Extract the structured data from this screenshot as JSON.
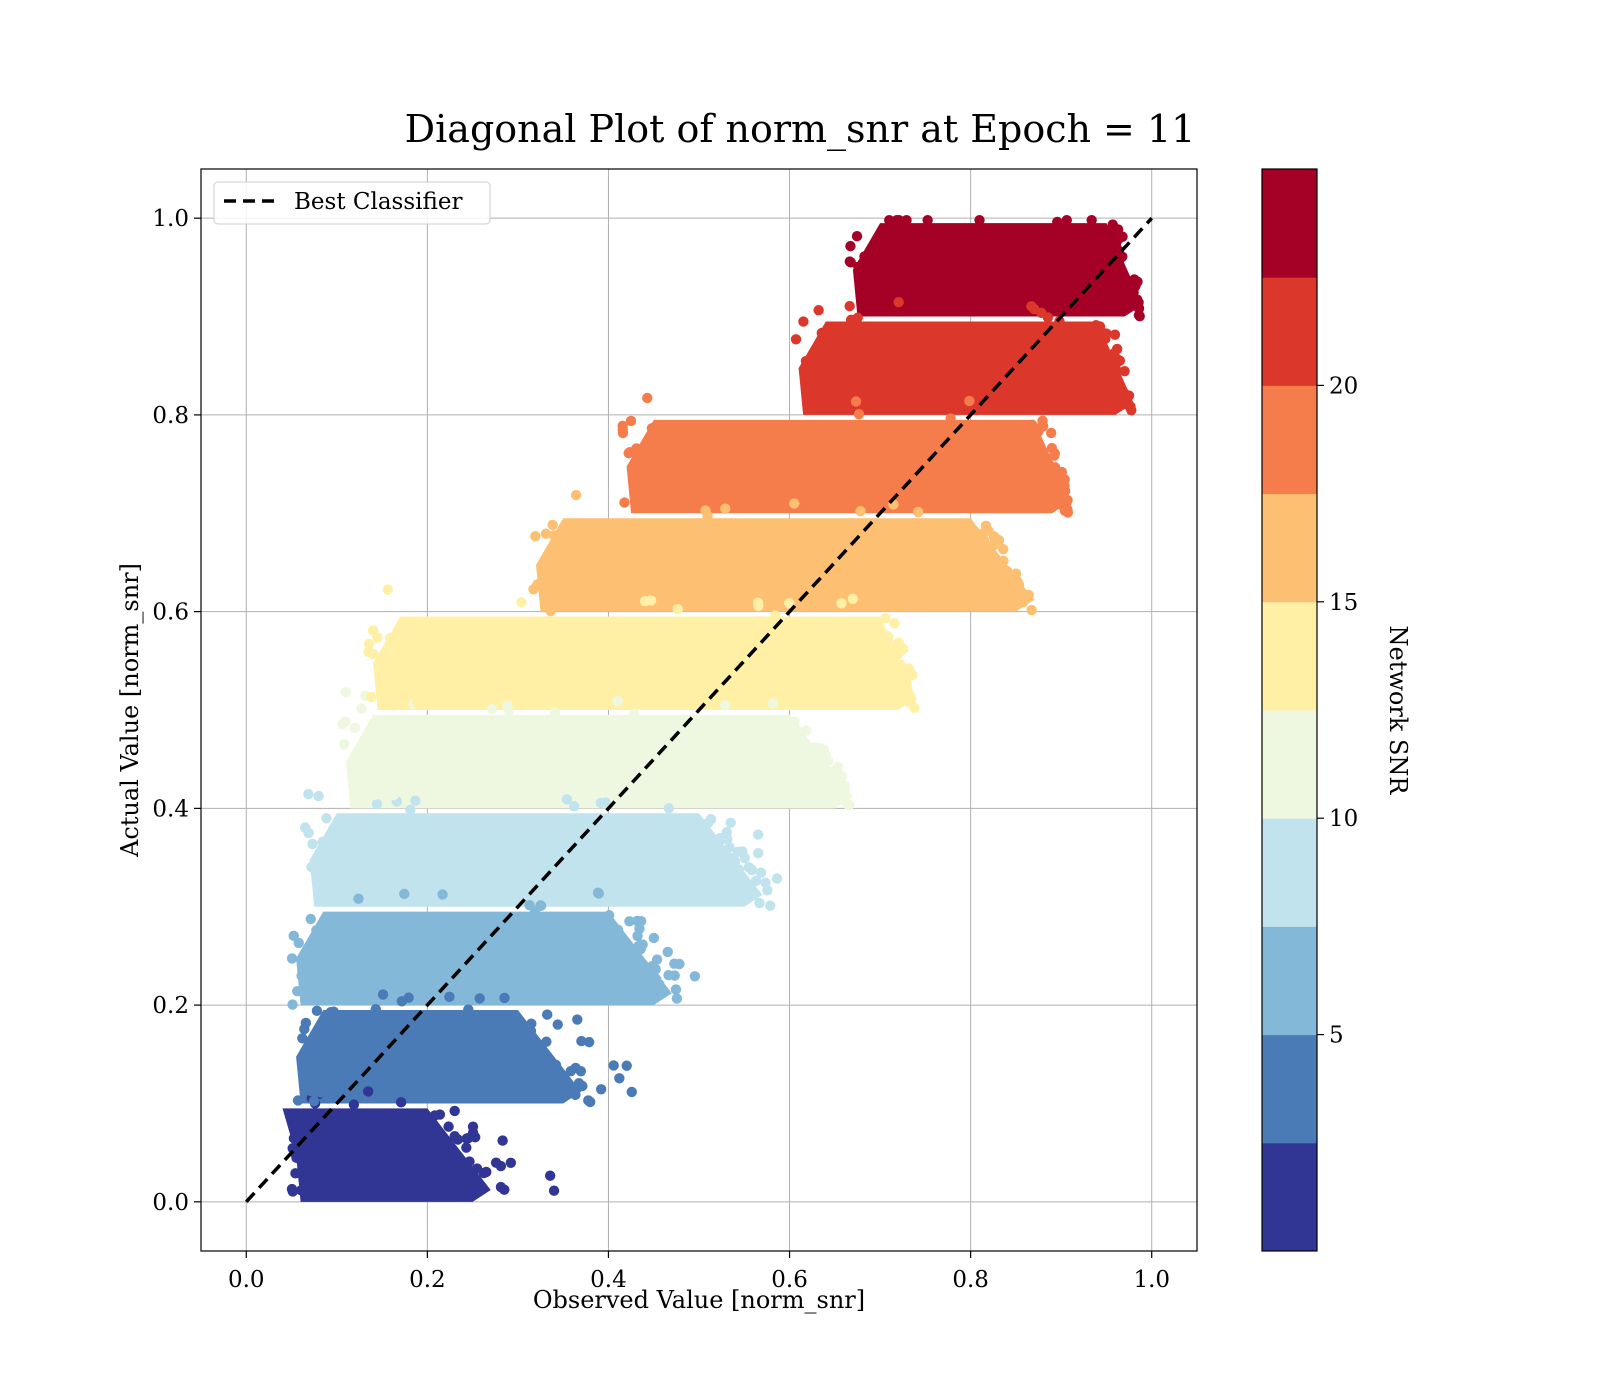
{
  "chart_data": {
    "type": "scatter",
    "title": "Diagonal Plot of norm_snr at Epoch = 11",
    "xlabel": "Observed Value [norm_snr]",
    "ylabel": "Actual Value [norm_snr]",
    "xlim": [
      -0.05,
      1.05
    ],
    "ylim": [
      -0.05,
      1.05
    ],
    "x_ticks": [
      0.0,
      0.2,
      0.4,
      0.6,
      0.8,
      1.0
    ],
    "y_ticks": [
      0.0,
      0.2,
      0.4,
      0.6,
      0.8,
      1.0
    ],
    "x_tick_labels": [
      "0.0",
      "0.2",
      "0.4",
      "0.6",
      "0.8",
      "1.0"
    ],
    "y_tick_labels": [
      "0.0",
      "0.2",
      "0.4",
      "0.6",
      "0.8",
      "1.0"
    ],
    "grid": true,
    "legend": {
      "position": "top-left",
      "entries": [
        {
          "label": "Best Classifier",
          "style": "dashed-black-line"
        }
      ]
    },
    "reference_line": {
      "name": "Best Classifier",
      "x": [
        0.0,
        1.0
      ],
      "y": [
        0.0,
        1.0
      ],
      "color": "#000000"
    },
    "colorbar": {
      "label": "Network SNR",
      "range": [
        0,
        25
      ],
      "ticks": [
        5,
        10,
        15,
        20
      ],
      "tick_labels": [
        "5",
        "10",
        "15",
        "20"
      ],
      "colors": [
        "#313695",
        "#4a7bb7",
        "#84b8d8",
        "#c0e3ee",
        "#eef8e0",
        "#fff0a6",
        "#fdbf71",
        "#f57c4b",
        "#db382b",
        "#a50026"
      ]
    },
    "bands": [
      {
        "y_range": [
          0.0,
          0.1
        ],
        "x_range": [
          0.055,
          0.37
        ],
        "color": "#313695"
      },
      {
        "y_range": [
          0.1,
          0.2
        ],
        "x_range": [
          0.055,
          0.45
        ],
        "color": "#4a7bb7"
      },
      {
        "y_range": [
          0.2,
          0.3
        ],
        "x_range": [
          0.055,
          0.51
        ],
        "color": "#84b8d8"
      },
      {
        "y_range": [
          0.3,
          0.4
        ],
        "x_range": [
          0.07,
          0.61
        ],
        "color": "#c0e3ee"
      },
      {
        "y_range": [
          0.4,
          0.5
        ],
        "x_range": [
          0.11,
          0.67
        ],
        "color": "#eef8e0"
      },
      {
        "y_range": [
          0.5,
          0.6
        ],
        "x_range": [
          0.14,
          0.74
        ],
        "color": "#fff0a6"
      },
      {
        "y_range": [
          0.6,
          0.7
        ],
        "x_range": [
          0.32,
          0.87
        ],
        "color": "#fdbf71"
      },
      {
        "y_range": [
          0.7,
          0.8
        ],
        "x_range": [
          0.42,
          0.91
        ],
        "color": "#f57c4b"
      },
      {
        "y_range": [
          0.8,
          0.9
        ],
        "x_range": [
          0.61,
          0.98
        ],
        "color": "#db382b"
      },
      {
        "y_range": [
          0.9,
          1.0
        ],
        "x_range": [
          0.67,
          0.99
        ],
        "color": "#a50026"
      }
    ]
  }
}
